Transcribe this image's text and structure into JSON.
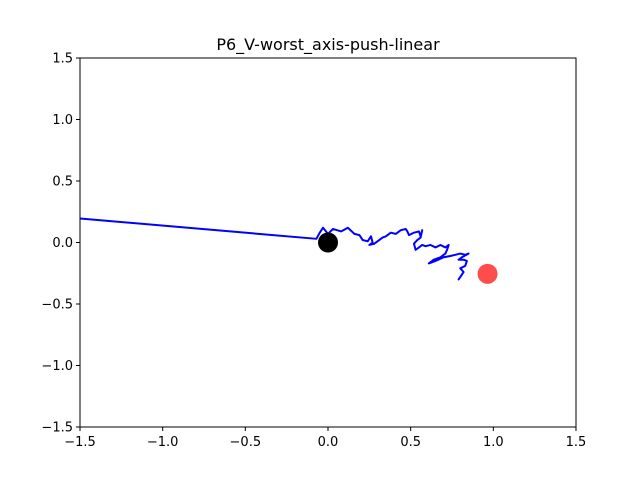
{
  "chart_data": {
    "type": "line",
    "title": "P6_V-worst_axis-push-linear",
    "xlabel": "",
    "ylabel": "",
    "xlim": [
      -1.5,
      1.5
    ],
    "ylim": [
      -1.5,
      1.5
    ],
    "xticks": [
      "−1.5",
      "−1.0",
      "−0.5",
      "0.0",
      "0.5",
      "1.0",
      "1.5"
    ],
    "yticks": [
      "−1.5",
      "−1.0",
      "−0.5",
      "0.0",
      "0.5",
      "1.0",
      "1.5"
    ],
    "xtick_values": [
      -1.5,
      -1.0,
      -0.5,
      0.0,
      0.5,
      1.0,
      1.5
    ],
    "ytick_values": [
      -1.5,
      -1.0,
      -0.5,
      0.0,
      0.5,
      1.0,
      1.5
    ],
    "grid": false,
    "series": [
      {
        "color": "#0000ff",
        "points": [
          [
            -1.5,
            0.195
          ],
          [
            -0.07,
            0.03
          ],
          [
            -0.05,
            0.08
          ],
          [
            -0.03,
            0.12
          ],
          [
            0.0,
            0.07
          ],
          [
            0.03,
            0.11
          ],
          [
            0.08,
            0.09
          ],
          [
            0.12,
            0.12
          ],
          [
            0.16,
            0.07
          ],
          [
            0.19,
            0.06
          ],
          [
            0.21,
            0.02
          ],
          [
            0.24,
            0.01
          ],
          [
            0.26,
            0.05
          ],
          [
            0.27,
            0.0
          ],
          [
            0.25,
            -0.02
          ],
          [
            0.28,
            -0.01
          ],
          [
            0.31,
            0.02
          ],
          [
            0.33,
            0.04
          ],
          [
            0.35,
            0.05
          ],
          [
            0.38,
            0.08
          ],
          [
            0.41,
            0.07
          ],
          [
            0.44,
            0.1
          ],
          [
            0.47,
            0.11
          ],
          [
            0.48,
            0.09
          ],
          [
            0.49,
            0.06
          ],
          [
            0.52,
            0.08
          ],
          [
            0.55,
            0.09
          ],
          [
            0.56,
            0.05
          ],
          [
            0.57,
            0.1
          ],
          [
            0.56,
            0.04
          ],
          [
            0.54,
            0.02
          ],
          [
            0.52,
            -0.01
          ],
          [
            0.53,
            -0.06
          ],
          [
            0.55,
            -0.04
          ],
          [
            0.57,
            -0.02
          ],
          [
            0.59,
            -0.03
          ],
          [
            0.62,
            -0.02
          ],
          [
            0.65,
            -0.04
          ],
          [
            0.68,
            -0.02
          ],
          [
            0.71,
            -0.04
          ],
          [
            0.73,
            -0.02
          ],
          [
            0.72,
            -0.06
          ],
          [
            0.71,
            -0.09
          ],
          [
            0.68,
            -0.12
          ],
          [
            0.64,
            -0.14
          ],
          [
            0.61,
            -0.17
          ],
          [
            0.65,
            -0.15
          ],
          [
            0.7,
            -0.12
          ],
          [
            0.74,
            -0.11
          ],
          [
            0.77,
            -0.1
          ],
          [
            0.8,
            -0.09
          ],
          [
            0.83,
            -0.1
          ],
          [
            0.85,
            -0.09
          ],
          [
            0.81,
            -0.12
          ],
          [
            0.79,
            -0.14
          ],
          [
            0.82,
            -0.14
          ],
          [
            0.84,
            -0.15
          ],
          [
            0.83,
            -0.19
          ],
          [
            0.8,
            -0.21
          ],
          [
            0.82,
            -0.24
          ],
          [
            0.79,
            -0.3
          ]
        ]
      }
    ],
    "markers": [
      {
        "x": 0.0,
        "y": 0.0,
        "color": "#000000",
        "opacity": 1.0
      },
      {
        "x": 0.965,
        "y": -0.255,
        "color": "#ff0000",
        "opacity": 0.7
      }
    ]
  }
}
